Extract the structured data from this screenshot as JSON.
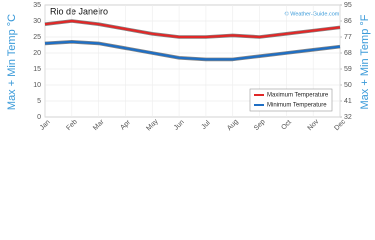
{
  "chart_data": {
    "type": "line",
    "title": "Rio de Janeiro",
    "watermark": "© Weather-Guide.com",
    "y_label": "Max + Min Temp °C",
    "y2_label": "Max + Min Temp °F",
    "categories": [
      "Jan",
      "Feb",
      "Mar",
      "Apr",
      "May",
      "Jun",
      "Jul",
      "Aug",
      "Sep",
      "Oct",
      "Nov",
      "Dec"
    ],
    "series": [
      {
        "name": "Maximum Temperature",
        "color": "#e02828",
        "values": [
          29,
          30,
          29,
          27.5,
          26,
          25,
          25,
          25.5,
          25,
          26,
          27,
          28
        ]
      },
      {
        "name": "Minimum Temperature",
        "color": "#1f6fc4",
        "values": [
          23,
          23.5,
          23,
          21.5,
          20,
          18.5,
          18,
          18,
          19,
          20,
          21,
          22
        ]
      }
    ],
    "ylim": [
      0,
      35
    ],
    "yticks": [
      0,
      5,
      10,
      15,
      20,
      25,
      30,
      35
    ],
    "y2lim": [
      32,
      95
    ],
    "y2ticks": [
      32,
      41,
      50,
      59,
      68,
      77,
      86,
      95
    ],
    "grid": true,
    "legend": "lower right"
  }
}
